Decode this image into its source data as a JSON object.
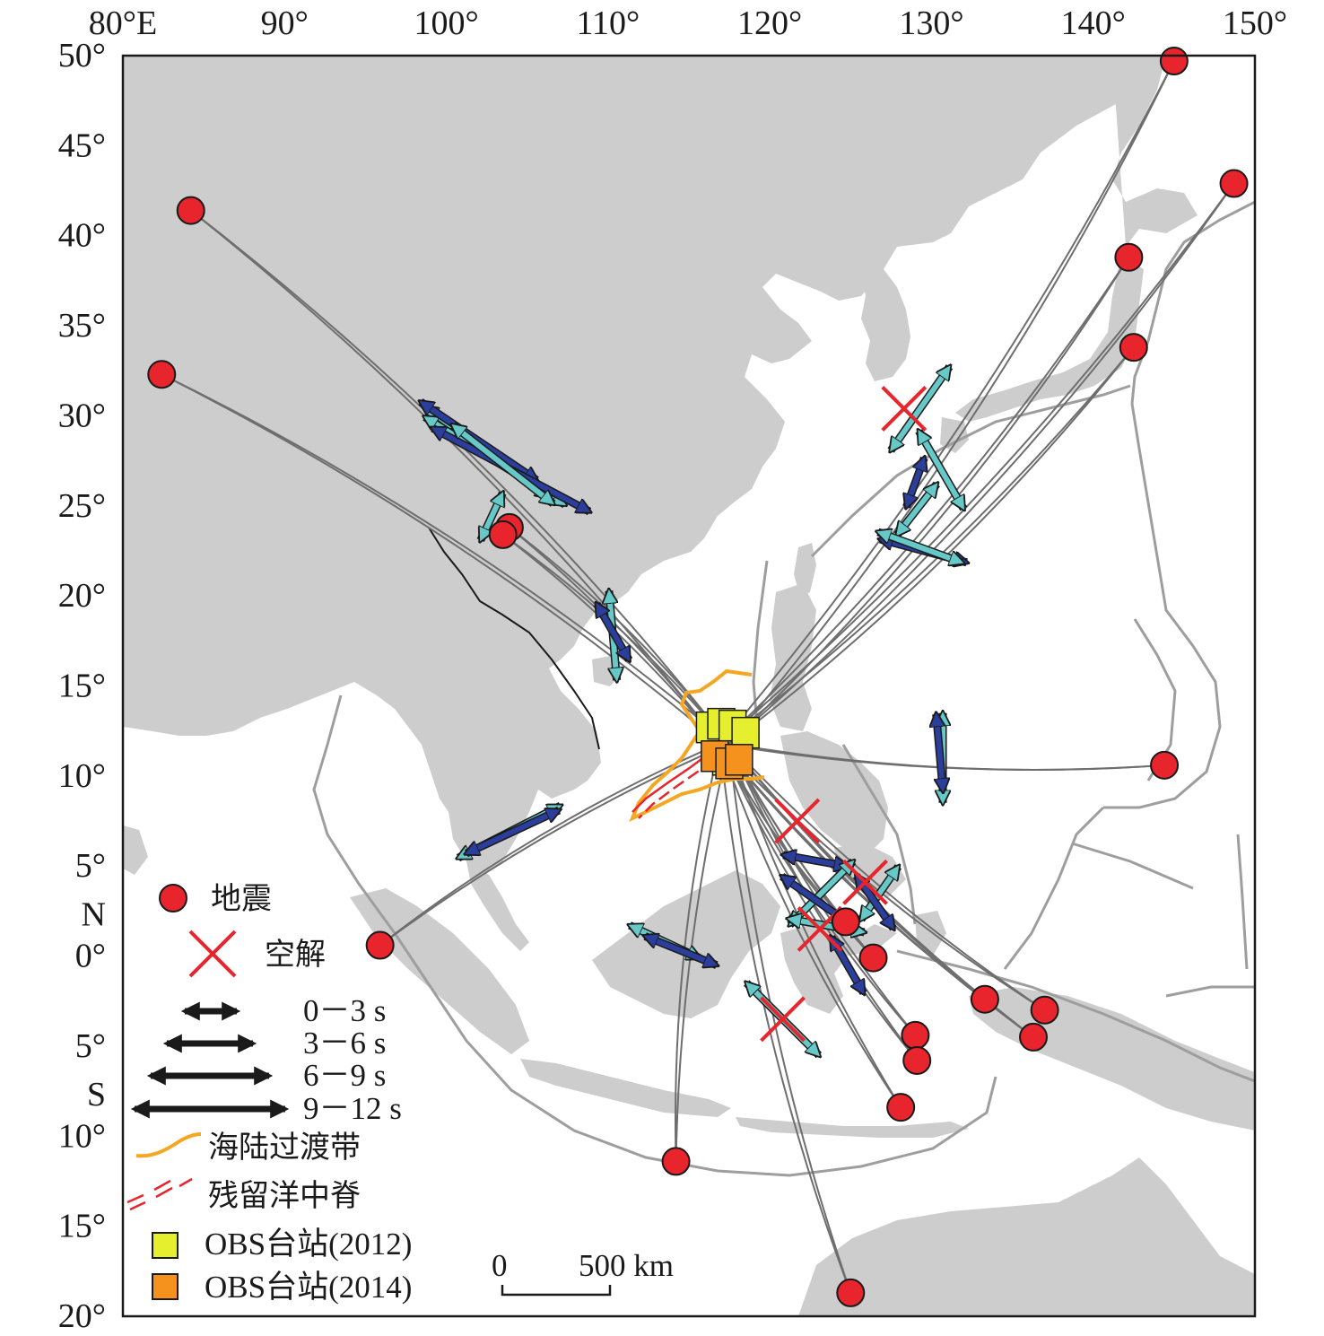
{
  "axes": {
    "top_ticks": [
      "80°E",
      "90°",
      "100°",
      "110°",
      "120°",
      "130°",
      "140°",
      "150°"
    ],
    "left_ticks": [
      "50°",
      "45°",
      "40°",
      "35°",
      "30°",
      "25°",
      "20°",
      "15°",
      "10°",
      "5°",
      "N",
      "0°",
      "5°",
      "S",
      "10°",
      "15°",
      "20°"
    ],
    "lon_range": [
      80,
      150
    ],
    "lat_range": [
      -20,
      50
    ]
  },
  "legend": {
    "earthquake": "地震",
    "null_measurement": "空解",
    "arrow_0_3": "0－3 s",
    "arrow_3_6": "3－6 s",
    "arrow_6_9": "6－9 s",
    "arrow_9_12": "9－12 s",
    "transition_zone": "海陆过渡带",
    "relict_ridge": "残留洋中脊",
    "obs_2012": "OBS台站(2012)",
    "obs_2014": "OBS台站(2014)"
  },
  "scale_bar": {
    "zero": "0",
    "label": "500 km"
  },
  "colors": {
    "land": "#cdcdcd",
    "sea": "#ffffff",
    "plate_boundary": "#9e9e9e",
    "ray_path": "#6e6e6e",
    "earthquake": "#e8242c",
    "null_cross": "#e8242c",
    "arrow_cyan": "#67c8c8",
    "arrow_blue": "#2c3e9c",
    "transition_zone": "#f5a623",
    "relict_ridge": "#e8242c",
    "obs_2012": "#e6ef2e",
    "obs_2014": "#f5921e"
  },
  "earthquakes": [
    {
      "lon": 84.2,
      "lat": 41.4
    },
    {
      "lon": 82.4,
      "lat": 32.3
    },
    {
      "lon": 103.9,
      "lat": 23.8
    },
    {
      "lon": 103.5,
      "lat": 23.4
    },
    {
      "lon": 95.9,
      "lat": 0.6
    },
    {
      "lon": 114.2,
      "lat": -11.4
    },
    {
      "lon": 145.0,
      "lat": 49.7
    },
    {
      "lon": 148.7,
      "lat": 42.9
    },
    {
      "lon": 142.2,
      "lat": 38.8
    },
    {
      "lon": 142.5,
      "lat": 33.8
    },
    {
      "lon": 144.4,
      "lat": 10.6
    },
    {
      "lon": 124.7,
      "lat": 1.9
    },
    {
      "lon": 126.4,
      "lat": -0.1
    },
    {
      "lon": 133.3,
      "lat": -2.4
    },
    {
      "lon": 137.0,
      "lat": -3.0
    },
    {
      "lon": 136.3,
      "lat": -4.5
    },
    {
      "lon": 129.0,
      "lat": -4.4
    },
    {
      "lon": 129.1,
      "lat": -5.8
    },
    {
      "lon": 128.1,
      "lat": -8.4
    },
    {
      "lon": 125.0,
      "lat": -18.7
    }
  ],
  "null_measurements": [
    {
      "lon": 128.3,
      "lat": 30.4
    },
    {
      "lon": 121.7,
      "lat": 7.5
    },
    {
      "lon": 125.9,
      "lat": 4.1
    },
    {
      "lon": 123.1,
      "lat": 1.5
    },
    {
      "lon": 120.8,
      "lat": -3.5
    }
  ],
  "obs_stations_2012": [
    {
      "lon": 116.3,
      "lat": 12.8
    },
    {
      "lon": 117.0,
      "lat": 13.0
    },
    {
      "lon": 117.7,
      "lat": 12.9
    },
    {
      "lon": 118.5,
      "lat": 12.5
    },
    {
      "lon": 117.3,
      "lat": 11.0
    }
  ],
  "obs_stations_2014": [
    {
      "lon": 116.6,
      "lat": 11.2
    },
    {
      "lon": 117.5,
      "lat": 10.8
    },
    {
      "lon": 118.1,
      "lat": 11.0
    }
  ],
  "splitting_measurements": [
    {
      "lon": 102.5,
      "lat": 28.0,
      "azimuth_deg": 126,
      "delay_s": 10,
      "color": "cyan"
    },
    {
      "lon": 103.0,
      "lat": 27.5,
      "azimuth_deg": 122,
      "delay_s": 11,
      "color": "cyan"
    },
    {
      "lon": 102.0,
      "lat": 28.6,
      "azimuth_deg": 124,
      "delay_s": 9,
      "color": "blue"
    },
    {
      "lon": 104.0,
      "lat": 27.0,
      "azimuth_deg": 118,
      "delay_s": 12,
      "color": "blue"
    },
    {
      "lon": 103.5,
      "lat": 27.3,
      "azimuth_deg": 128,
      "delay_s": 8,
      "color": "cyan"
    },
    {
      "lon": 102.8,
      "lat": 24.4,
      "azimuth_deg": 205,
      "delay_s": 2,
      "color": "cyan"
    },
    {
      "lon": 110.3,
      "lat": 17.8,
      "azimuth_deg": 175,
      "delay_s": 5,
      "color": "cyan"
    },
    {
      "lon": 110.3,
      "lat": 18.0,
      "azimuth_deg": 150,
      "delay_s": 3,
      "color": "blue"
    },
    {
      "lon": 103.9,
      "lat": 6.9,
      "azimuth_deg": 63,
      "delay_s": 7,
      "color": "cyan"
    },
    {
      "lon": 104.1,
      "lat": 6.9,
      "azimuth_deg": 65,
      "delay_s": 6,
      "color": "blue"
    },
    {
      "lon": 129.3,
      "lat": 30.4,
      "azimuth_deg": 35,
      "delay_s": 6,
      "color": "cyan"
    },
    {
      "lon": 130.6,
      "lat": 27.0,
      "azimuth_deg": 150,
      "delay_s": 5,
      "color": "cyan"
    },
    {
      "lon": 129.0,
      "lat": 26.3,
      "azimuth_deg": 20,
      "delay_s": 2,
      "color": "blue"
    },
    {
      "lon": 129.1,
      "lat": 24.8,
      "azimuth_deg": 38,
      "delay_s": 3,
      "color": "cyan"
    },
    {
      "lon": 129.5,
      "lat": 22.5,
      "azimuth_deg": 105,
      "delay_s": 5,
      "color": "blue"
    },
    {
      "lon": 129.3,
      "lat": 22.7,
      "azimuth_deg": 110,
      "delay_s": 5,
      "color": "cyan"
    },
    {
      "lon": 130.7,
      "lat": 11.0,
      "azimuth_deg": 180,
      "delay_s": 5,
      "color": "cyan"
    },
    {
      "lon": 130.5,
      "lat": 11.3,
      "azimuth_deg": 175,
      "delay_s": 4,
      "color": "blue"
    },
    {
      "lon": 122.8,
      "lat": 5.3,
      "azimuth_deg": 100,
      "delay_s": 3,
      "color": "blue"
    },
    {
      "lon": 123.2,
      "lat": 3.5,
      "azimuth_deg": 45,
      "delay_s": 5,
      "color": "cyan"
    },
    {
      "lon": 122.7,
      "lat": 3.2,
      "azimuth_deg": 125,
      "delay_s": 4,
      "color": "blue"
    },
    {
      "lon": 126.8,
      "lat": 3.5,
      "azimuth_deg": 35,
      "delay_s": 3,
      "color": "cyan"
    },
    {
      "lon": 126.5,
      "lat": 3.0,
      "azimuth_deg": 145,
      "delay_s": 3,
      "color": "blue"
    },
    {
      "lon": 123.5,
      "lat": 1.7,
      "azimuth_deg": 100,
      "delay_s": 4,
      "color": "cyan"
    },
    {
      "lon": 124.8,
      "lat": -0.5,
      "azimuth_deg": 150,
      "delay_s": 3,
      "color": "blue"
    },
    {
      "lon": 113.5,
      "lat": 0.8,
      "azimuth_deg": 115,
      "delay_s": 4,
      "color": "cyan"
    },
    {
      "lon": 114.5,
      "lat": 0.3,
      "azimuth_deg": 112,
      "delay_s": 4,
      "color": "blue"
    },
    {
      "lon": 120.8,
      "lat": -3.5,
      "azimuth_deg": 135,
      "delay_s": 6,
      "color": "cyan"
    }
  ]
}
